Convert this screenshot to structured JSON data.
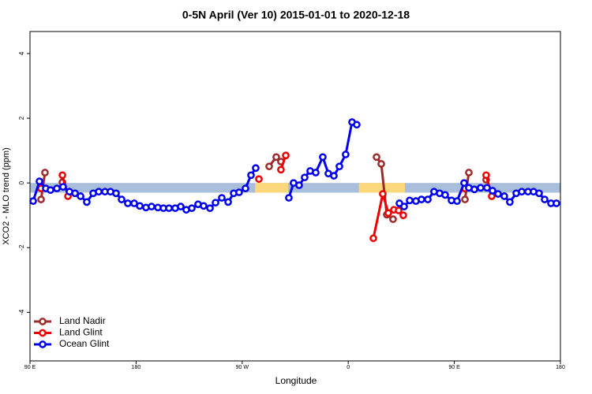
{
  "chart_data": {
    "type": "line",
    "title": "0-5N April (Ver 10)   2015-01-01 to 2020-12-18",
    "x_label": "Longitude",
    "y_label": "XCO2 - MLO trend (ppm)",
    "xlim": [
      90,
      540
    ],
    "ylim": [
      -5.5,
      4.68
    ],
    "xticks": [
      {
        "value": 90,
        "label": "90 E"
      },
      180,
      {
        "value": 270,
        "label": "90 W"
      },
      {
        "value": 360,
        "label": "0"
      },
      {
        "value": 450,
        "label": "90 E"
      },
      {
        "value": 540,
        "label": "180"
      }
    ],
    "yticks": [
      -4,
      -2,
      0,
      2,
      4
    ],
    "band": {
      "ylim": [
        -0.3,
        0
      ],
      "color": "#a9bedb",
      "land_color": "#fcd87c",
      "land": [
        [
          281,
          309
        ],
        [
          369,
          408
        ]
      ]
    },
    "legend": "bottom-left",
    "series": [
      {
        "name": "Land Nadir",
        "color": "#9e2a2a",
        "x": [
          99.4,
          102.7,
          null,
          117.5,
          null,
          292.9,
          298.9,
          302.9,
          null,
          384.0,
          388.0,
          392.7,
          398.0,
          null,
          459.0,
          462.3,
          null,
          477.0
        ],
        "values": [
          -0.51,
          0.32,
          null,
          0.02,
          null,
          0.51,
          0.8,
          0.66,
          null,
          0.8,
          0.59,
          -0.98,
          -1.12,
          null,
          -0.51,
          0.32,
          null,
          0.1
        ]
      },
      {
        "name": "Land Glint",
        "color": "#ee0000",
        "x": [
          99.4,
          null,
          117.5,
          122.2,
          null,
          284.2,
          null,
          302.9,
          307.0,
          null,
          381.3,
          389.3,
          394.0,
          398.7,
          402.7,
          406.7,
          null,
          459.0,
          null,
          477.0,
          481.7
        ],
        "values": [
          -0.17,
          null,
          0.24,
          -0.41,
          null,
          0.12,
          null,
          0.41,
          0.85,
          null,
          -1.71,
          -0.34,
          -0.93,
          -0.83,
          -0.85,
          -1.0,
          null,
          -0.17,
          null,
          0.24,
          -0.41
        ]
      },
      {
        "name": "Ocean Glint",
        "color": "#0000ee",
        "x": [
          92.7,
          98.0,
          103.4,
          107.4,
          112.8,
          118.1,
          123.5,
          128.2,
          132.9,
          138.2,
          143.6,
          148.3,
          153.6,
          158.3,
          163.0,
          167.7,
          173.0,
          178.4,
          183.1,
          188.4,
          193.1,
          198.5,
          203.2,
          207.9,
          213.2,
          217.9,
          222.6,
          227.3,
          232.6,
          237.3,
          242.7,
          247.4,
          252.7,
          258.1,
          262.8,
          267.4,
          272.8,
          277.5,
          281.5,
          null,
          309.6,
          313.6,
          318.3,
          323.0,
          327.7,
          332.4,
          338.4,
          343.1,
          347.8,
          352.5,
          357.8,
          363.2,
          367.2,
          null,
          403.4,
          407.4,
          412.1,
          417.4,
          422.1,
          427.5,
          432.8,
          437.5,
          442.2,
          447.6,
          452.3,
          458.3,
          462.3,
          467.0,
          472.3,
          477.7,
          482.4,
          487.1,
          492.4,
          497.1,
          502.5,
          507.2,
          512.5,
          517.2,
          521.9,
          526.6,
          532.0,
          536.6
        ],
        "values": [
          -0.56,
          0.05,
          -0.17,
          -0.22,
          -0.17,
          -0.12,
          -0.27,
          -0.32,
          -0.41,
          -0.59,
          -0.32,
          -0.27,
          -0.27,
          -0.27,
          -0.32,
          -0.51,
          -0.63,
          -0.63,
          -0.71,
          -0.76,
          -0.73,
          -0.76,
          -0.78,
          -0.78,
          -0.78,
          -0.73,
          -0.83,
          -0.78,
          -0.66,
          -0.71,
          -0.78,
          -0.61,
          -0.46,
          -0.59,
          -0.32,
          -0.29,
          -0.17,
          0.24,
          0.46,
          null,
          -0.46,
          0,
          -0.07,
          0.17,
          0.37,
          0.32,
          0.8,
          0.29,
          0.22,
          0.51,
          0.88,
          1.88,
          1.8,
          null,
          -0.63,
          -0.73,
          -0.54,
          -0.56,
          -0.51,
          -0.51,
          -0.27,
          -0.32,
          -0.37,
          -0.54,
          -0.56,
          0,
          -0.15,
          -0.2,
          -0.15,
          -0.15,
          -0.24,
          -0.34,
          -0.41,
          -0.59,
          -0.32,
          -0.27,
          -0.27,
          -0.27,
          -0.32,
          -0.51,
          -0.63,
          -0.63
        ]
      }
    ]
  }
}
